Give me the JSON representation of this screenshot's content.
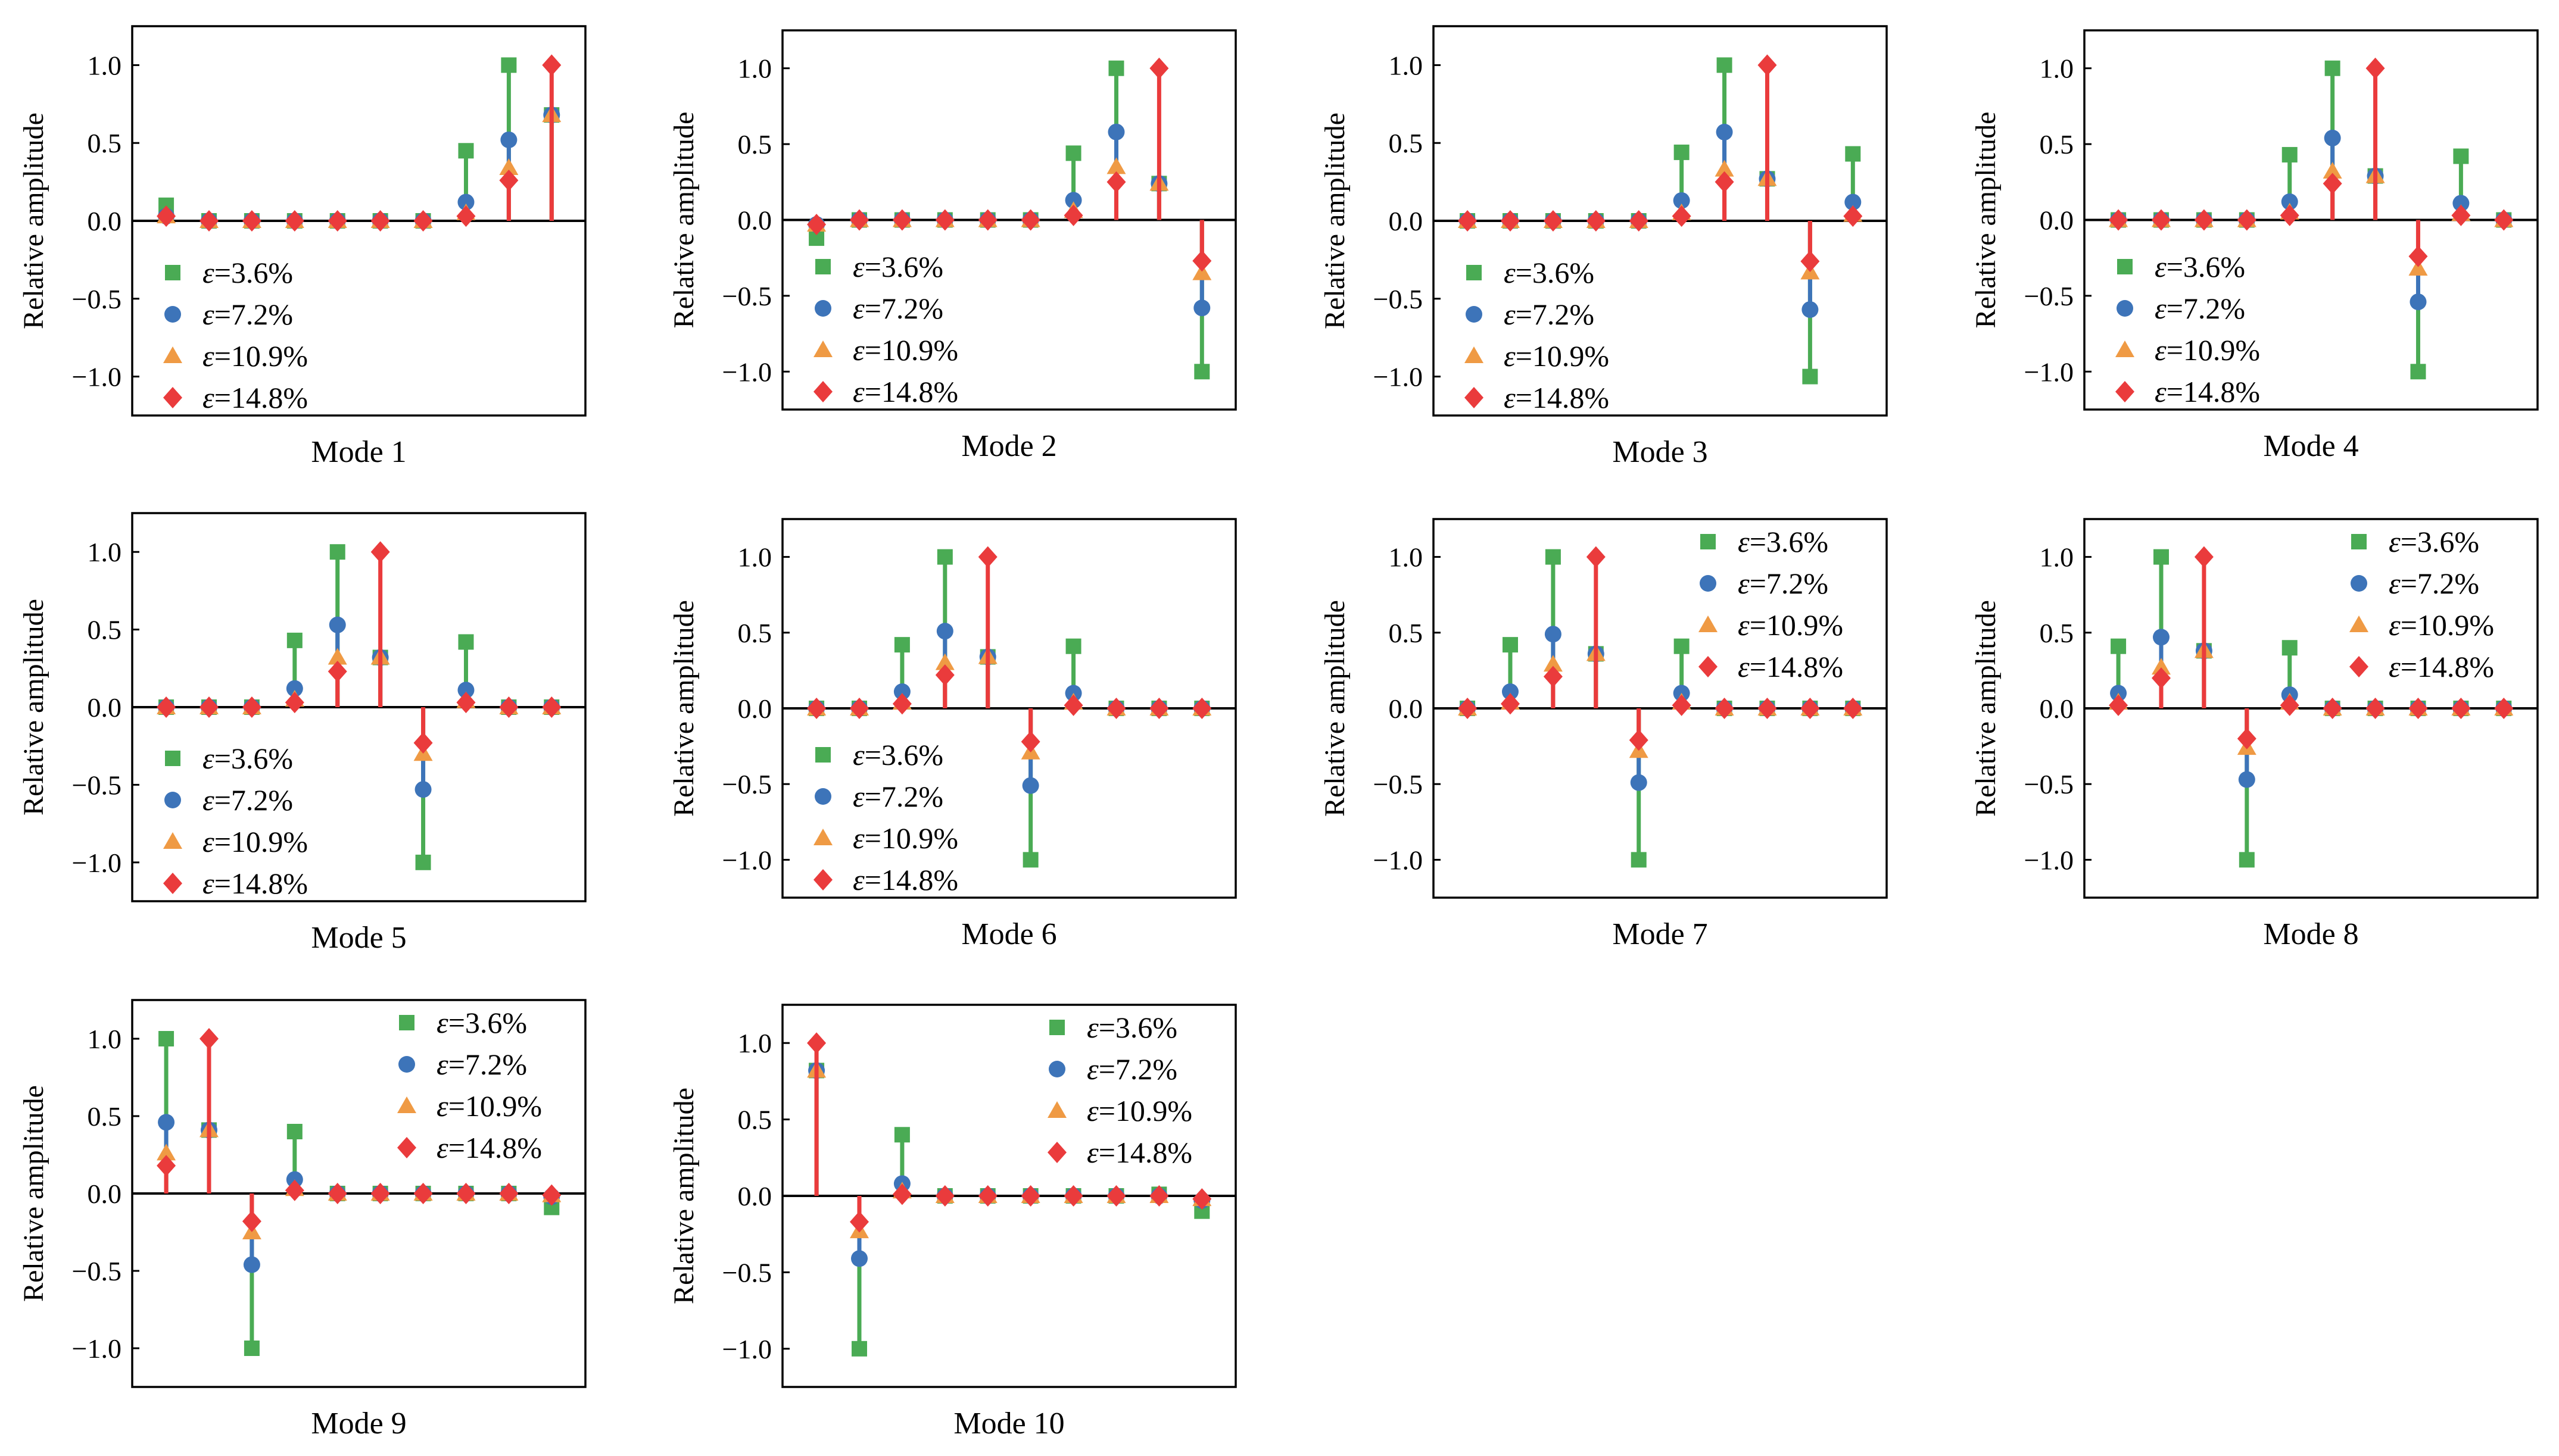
{
  "colors": {
    "eps_3_6": "#4aab54",
    "eps_7_2": "#3d74b9",
    "eps_10_9": "#ef9a44",
    "eps_14_8": "#ea3b3c"
  },
  "chart_data": [
    {
      "type": "stem",
      "title": "Mode 1",
      "ylabel": "Relative amplitude",
      "xlabel": "",
      "ylim": [
        -1.25,
        1.25
      ],
      "yticks": [
        "1.0",
        "0.5",
        "0.0",
        "-0.5",
        "-1.0"
      ],
      "legend_position": "bottom-left",
      "x": [
        1,
        2,
        3,
        4,
        5,
        6,
        7,
        8,
        9,
        10
      ],
      "series": [
        {
          "name": "ε=3.6%",
          "marker": "square",
          "values": [
            0.1,
            0.0,
            0.0,
            0.0,
            0.0,
            0.0,
            0.0,
            0.45,
            1.0,
            0.68
          ]
        },
        {
          "name": "ε=7.2%",
          "marker": "circle",
          "values": [
            0.03,
            0.0,
            0.0,
            0.0,
            0.0,
            0.0,
            0.0,
            0.12,
            0.52,
            0.68
          ]
        },
        {
          "name": "ε=10.9%",
          "marker": "triangle",
          "values": [
            0.03,
            0.0,
            0.0,
            0.0,
            0.0,
            0.0,
            0.0,
            0.05,
            0.34,
            0.68
          ]
        },
        {
          "name": "ε=14.8%",
          "marker": "diamond",
          "values": [
            0.03,
            0.0,
            0.0,
            0.0,
            0.0,
            0.0,
            0.0,
            0.03,
            0.26,
            1.0
          ]
        }
      ]
    },
    {
      "type": "stem",
      "title": "Mode 2",
      "ylabel": "Relative amplitude",
      "xlabel": "",
      "ylim": [
        -1.25,
        1.25
      ],
      "yticks": [
        "1.0",
        "0.5",
        "0.0",
        "-0.5",
        "-1.0"
      ],
      "legend_position": "bottom-left",
      "x": [
        1,
        2,
        3,
        4,
        5,
        6,
        7,
        8,
        9,
        10
      ],
      "series": [
        {
          "name": "ε=3.6%",
          "marker": "square",
          "values": [
            -0.12,
            0.0,
            0.0,
            0.0,
            0.0,
            0.0,
            0.44,
            1.0,
            0.24,
            -1.0
          ]
        },
        {
          "name": "ε=7.2%",
          "marker": "circle",
          "values": [
            -0.03,
            0.0,
            0.0,
            0.0,
            0.0,
            0.0,
            0.13,
            0.58,
            0.24,
            -0.58
          ]
        },
        {
          "name": "ε=10.9%",
          "marker": "triangle",
          "values": [
            -0.03,
            0.0,
            0.0,
            0.0,
            0.0,
            0.0,
            0.06,
            0.35,
            0.24,
            -0.35
          ]
        },
        {
          "name": "ε=14.8%",
          "marker": "diamond",
          "values": [
            -0.03,
            0.0,
            0.0,
            0.0,
            0.0,
            0.0,
            0.03,
            0.25,
            1.0,
            -0.27
          ]
        }
      ]
    },
    {
      "type": "stem",
      "title": "Mode 3",
      "ylabel": "Relative amplitude",
      "xlabel": "",
      "ylim": [
        -1.25,
        1.25
      ],
      "yticks": [
        "1.0",
        "0.5",
        "0.0",
        "-0.5",
        "-1.0"
      ],
      "legend_position": "bottom-left",
      "x": [
        1,
        2,
        3,
        4,
        5,
        6,
        7,
        8,
        9,
        10
      ],
      "series": [
        {
          "name": "ε=3.6%",
          "marker": "square",
          "values": [
            0.0,
            0.0,
            0.0,
            0.0,
            0.0,
            0.44,
            1.0,
            0.27,
            -1.0,
            0.43
          ]
        },
        {
          "name": "ε=7.2%",
          "marker": "circle",
          "values": [
            0.0,
            0.0,
            0.0,
            0.0,
            0.0,
            0.13,
            0.57,
            0.27,
            -0.57,
            0.12
          ]
        },
        {
          "name": "ε=10.9%",
          "marker": "triangle",
          "values": [
            0.0,
            0.0,
            0.0,
            0.0,
            0.0,
            0.05,
            0.33,
            0.27,
            -0.33,
            0.04
          ]
        },
        {
          "name": "ε=14.8%",
          "marker": "diamond",
          "values": [
            0.0,
            0.0,
            0.0,
            0.0,
            0.0,
            0.03,
            0.25,
            1.0,
            -0.26,
            0.03
          ]
        }
      ]
    },
    {
      "type": "stem",
      "title": "Mode 4",
      "ylabel": "Relative amplitude",
      "xlabel": "",
      "ylim": [
        -1.25,
        1.25
      ],
      "yticks": [
        "1.0",
        "0.5",
        "0.0",
        "-0.5",
        "-1.0"
      ],
      "legend_position": "bottom-left",
      "x": [
        1,
        2,
        3,
        4,
        5,
        6,
        7,
        8,
        9,
        10
      ],
      "series": [
        {
          "name": "ε=3.6%",
          "marker": "square",
          "values": [
            0.0,
            0.0,
            0.0,
            0.0,
            0.43,
            1.0,
            0.29,
            -1.0,
            0.42,
            0.0
          ]
        },
        {
          "name": "ε=7.2%",
          "marker": "circle",
          "values": [
            0.0,
            0.0,
            0.0,
            0.0,
            0.12,
            0.54,
            0.29,
            -0.54,
            0.11,
            0.0
          ]
        },
        {
          "name": "ε=10.9%",
          "marker": "triangle",
          "values": [
            0.0,
            0.0,
            0.0,
            0.0,
            0.05,
            0.32,
            0.29,
            -0.32,
            0.04,
            0.0
          ]
        },
        {
          "name": "ε=14.8%",
          "marker": "diamond",
          "values": [
            0.0,
            0.0,
            0.0,
            0.0,
            0.03,
            0.24,
            1.0,
            -0.24,
            0.03,
            0.0
          ]
        }
      ]
    },
    {
      "type": "stem",
      "title": "Mode 5",
      "ylabel": "Relative amplitude",
      "xlabel": "",
      "ylim": [
        -1.25,
        1.25
      ],
      "yticks": [
        "1.0",
        "0.5",
        "0.0",
        "-0.5",
        "-1.0"
      ],
      "legend_position": "bottom-left",
      "x": [
        1,
        2,
        3,
        4,
        5,
        6,
        7,
        8,
        9,
        10
      ],
      "series": [
        {
          "name": "ε=3.6%",
          "marker": "square",
          "values": [
            0.0,
            0.0,
            0.0,
            0.43,
            1.0,
            0.32,
            -1.0,
            0.42,
            0.0,
            0.0
          ]
        },
        {
          "name": "ε=7.2%",
          "marker": "circle",
          "values": [
            0.0,
            0.0,
            0.0,
            0.12,
            0.53,
            0.32,
            -0.53,
            0.11,
            0.0,
            0.0
          ]
        },
        {
          "name": "ε=10.9%",
          "marker": "triangle",
          "values": [
            0.0,
            0.0,
            0.0,
            0.05,
            0.32,
            0.32,
            -0.3,
            0.04,
            0.0,
            0.0
          ]
        },
        {
          "name": "ε=14.8%",
          "marker": "diamond",
          "values": [
            0.0,
            0.0,
            0.0,
            0.03,
            0.23,
            1.0,
            -0.23,
            0.03,
            0.0,
            0.0
          ]
        }
      ]
    },
    {
      "type": "stem",
      "title": "Mode 6",
      "ylabel": "Relative amplitude",
      "xlabel": "",
      "ylim": [
        -1.25,
        1.25
      ],
      "yticks": [
        "1.0",
        "0.5",
        "0.0",
        "-0.5",
        "-1.0"
      ],
      "legend_position": "bottom-left",
      "x": [
        1,
        2,
        3,
        4,
        5,
        6,
        7,
        8,
        9,
        10
      ],
      "series": [
        {
          "name": "ε=3.6%",
          "marker": "square",
          "values": [
            0.0,
            0.0,
            0.42,
            1.0,
            0.34,
            -1.0,
            0.41,
            0.0,
            0.0,
            0.0
          ]
        },
        {
          "name": "ε=7.2%",
          "marker": "circle",
          "values": [
            0.0,
            0.0,
            0.11,
            0.51,
            0.34,
            -0.51,
            0.1,
            0.0,
            0.0,
            0.0
          ]
        },
        {
          "name": "ε=10.9%",
          "marker": "triangle",
          "values": [
            0.0,
            0.0,
            0.04,
            0.3,
            0.34,
            -0.29,
            0.04,
            0.0,
            0.0,
            0.0
          ]
        },
        {
          "name": "ε=14.8%",
          "marker": "diamond",
          "values": [
            0.0,
            0.0,
            0.03,
            0.22,
            1.0,
            -0.22,
            0.02,
            0.0,
            0.0,
            0.0
          ]
        }
      ]
    },
    {
      "type": "stem",
      "title": "Mode 7",
      "ylabel": "Relative amplitude",
      "xlabel": "",
      "ylim": [
        -1.25,
        1.25
      ],
      "yticks": [
        "1.0",
        "0.5",
        "0.0",
        "-0.5",
        "-1.0"
      ],
      "legend_position": "top-right",
      "x": [
        1,
        2,
        3,
        4,
        5,
        6,
        7,
        8,
        9,
        10
      ],
      "series": [
        {
          "name": "ε=3.6%",
          "marker": "square",
          "values": [
            0.0,
            0.42,
            1.0,
            0.36,
            -1.0,
            0.41,
            0.0,
            0.0,
            0.0,
            0.0
          ]
        },
        {
          "name": "ε=7.2%",
          "marker": "circle",
          "values": [
            0.0,
            0.11,
            0.49,
            0.36,
            -0.49,
            0.1,
            0.0,
            0.0,
            0.0,
            0.0
          ]
        },
        {
          "name": "ε=10.9%",
          "marker": "triangle",
          "values": [
            0.0,
            0.04,
            0.29,
            0.36,
            -0.28,
            0.04,
            0.0,
            0.0,
            0.0,
            0.0
          ]
        },
        {
          "name": "ε=14.8%",
          "marker": "diamond",
          "values": [
            0.0,
            0.03,
            0.21,
            1.0,
            -0.21,
            0.02,
            0.0,
            0.0,
            0.0,
            0.0
          ]
        }
      ]
    },
    {
      "type": "stem",
      "title": "Mode 8",
      "ylabel": "Relative amplitude",
      "xlabel": "",
      "ylim": [
        -1.25,
        1.25
      ],
      "yticks": [
        "1.0",
        "0.5",
        "0.0",
        "-0.5",
        "-1.0"
      ],
      "legend_position": "top-right",
      "x": [
        1,
        2,
        3,
        4,
        5,
        6,
        7,
        8,
        9,
        10
      ],
      "series": [
        {
          "name": "ε=3.6%",
          "marker": "square",
          "values": [
            0.41,
            1.0,
            0.38,
            -1.0,
            0.4,
            0.0,
            0.0,
            0.0,
            0.0,
            0.0
          ]
        },
        {
          "name": "ε=7.2%",
          "marker": "circle",
          "values": [
            0.1,
            0.47,
            0.38,
            -0.47,
            0.09,
            0.0,
            0.0,
            0.0,
            0.0,
            0.0
          ]
        },
        {
          "name": "ε=10.9%",
          "marker": "triangle",
          "values": [
            0.04,
            0.27,
            0.38,
            -0.26,
            0.04,
            0.0,
            0.0,
            0.0,
            0.0,
            0.0
          ]
        },
        {
          "name": "ε=14.8%",
          "marker": "diamond",
          "values": [
            0.02,
            0.2,
            1.0,
            -0.2,
            0.02,
            0.0,
            0.0,
            0.0,
            0.0,
            0.0
          ]
        }
      ]
    },
    {
      "type": "stem",
      "title": "Mode 9",
      "ylabel": "Relative amplitude",
      "xlabel": "",
      "ylim": [
        -1.25,
        1.25
      ],
      "yticks": [
        "1.0",
        "0.5",
        "0.0",
        "-0.5",
        "-1.0"
      ],
      "legend_position": "top-right",
      "x": [
        1,
        2,
        3,
        4,
        5,
        6,
        7,
        8,
        9,
        10
      ],
      "series": [
        {
          "name": "ε=3.6%",
          "marker": "square",
          "values": [
            1.0,
            0.41,
            -1.0,
            0.4,
            0.0,
            0.0,
            0.0,
            0.0,
            0.0,
            -0.09
          ]
        },
        {
          "name": "ε=7.2%",
          "marker": "circle",
          "values": [
            0.46,
            0.41,
            -0.46,
            0.09,
            0.0,
            0.0,
            0.0,
            0.0,
            0.0,
            -0.02
          ]
        },
        {
          "name": "ε=10.9%",
          "marker": "triangle",
          "values": [
            0.26,
            0.41,
            -0.25,
            0.03,
            0.0,
            0.0,
            0.0,
            0.0,
            0.0,
            -0.01
          ]
        },
        {
          "name": "ε=14.8%",
          "marker": "diamond",
          "values": [
            0.18,
            1.0,
            -0.18,
            0.02,
            0.0,
            0.0,
            0.0,
            0.0,
            0.0,
            -0.01
          ]
        }
      ]
    },
    {
      "type": "stem",
      "title": "Mode 10",
      "ylabel": "Relative amplitude",
      "xlabel": "",
      "ylim": [
        -1.25,
        1.25
      ],
      "yticks": [
        "1.0",
        "0.5",
        "0.0",
        "-0.5",
        "-1.0"
      ],
      "legend_position": "top-right",
      "x": [
        1,
        2,
        3,
        4,
        5,
        6,
        7,
        8,
        9,
        10
      ],
      "series": [
        {
          "name": "ε=3.6%",
          "marker": "square",
          "values": [
            0.82,
            -1.0,
            0.4,
            0.0,
            0.0,
            0.0,
            0.0,
            0.0,
            0.01,
            -0.1
          ]
        },
        {
          "name": "ε=7.2%",
          "marker": "circle",
          "values": [
            0.82,
            -0.41,
            0.08,
            0.0,
            0.0,
            0.0,
            0.0,
            0.0,
            0.0,
            -0.03
          ]
        },
        {
          "name": "ε=10.9%",
          "marker": "triangle",
          "values": [
            0.82,
            -0.23,
            0.03,
            0.0,
            0.0,
            0.0,
            0.0,
            0.0,
            0.0,
            -0.02
          ]
        },
        {
          "name": "ε=14.8%",
          "marker": "diamond",
          "values": [
            1.0,
            -0.17,
            0.01,
            0.0,
            0.0,
            0.0,
            0.0,
            0.0,
            0.0,
            -0.02
          ]
        }
      ]
    }
  ]
}
